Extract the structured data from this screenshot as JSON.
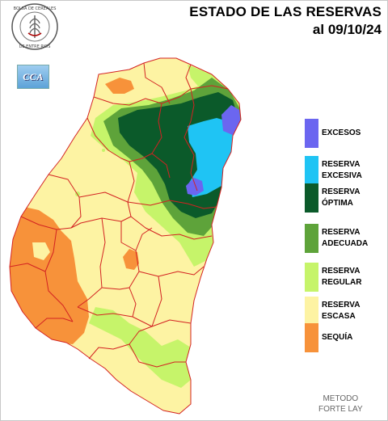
{
  "header": {
    "title": "ESTADO DE LAS RESERVAS",
    "date": "al 09/10/24"
  },
  "logos": {
    "bolsa_text": "BOLSA DE CEREALES DE ENTRE RIOS",
    "cca_text": "CCA"
  },
  "legend": [
    {
      "label": "EXCESOS",
      "color": "#6b66f0"
    },
    {
      "label": "RESERVA\nEXCESIVA",
      "color": "#1fc4f4"
    },
    {
      "label": "RESERVA\nÓPTIMA",
      "color": "#0b5a2a"
    },
    {
      "label": "RESERVA\nADECUADA",
      "color": "#5ea33a"
    },
    {
      "label": "RESERVA\nREGULAR",
      "color": "#c6f46a"
    },
    {
      "label": "RESERVA\nESCASA",
      "color": "#fdf3a3"
    },
    {
      "label": "SEQUÍA",
      "color": "#f7923a"
    }
  ],
  "footer": {
    "method_line1": "METODO",
    "method_line2": "FORTE LAY"
  },
  "colors": {
    "border": "#d32222",
    "excesos": "#6b66f0",
    "excesiva": "#1fc4f4",
    "optima": "#0b5a2a",
    "adecuada": "#5ea33a",
    "regular": "#c6f46a",
    "escasa": "#fdf3a3",
    "sequia": "#f7923a"
  }
}
